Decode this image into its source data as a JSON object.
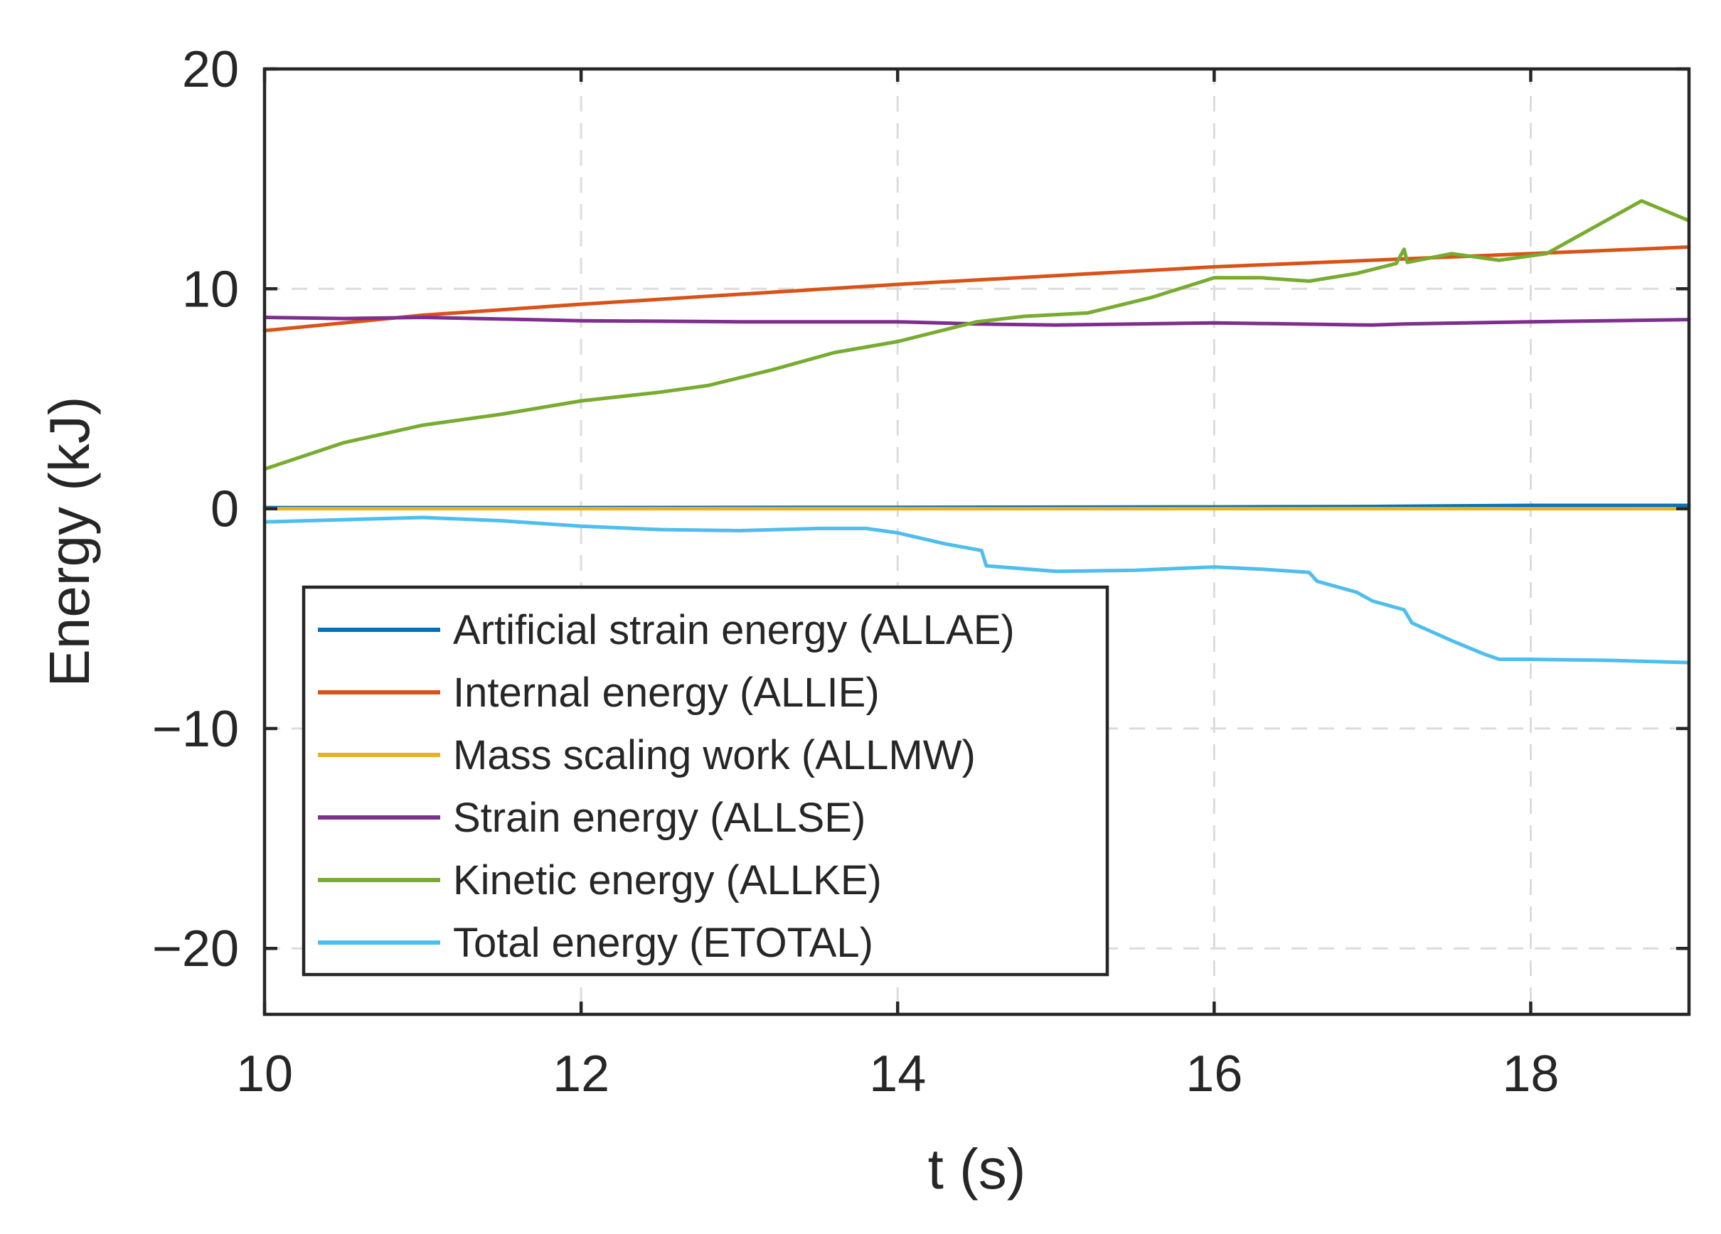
{
  "chart_data": {
    "type": "line",
    "title": "",
    "xlabel": "t (s)",
    "ylabel": "Energy (kJ)",
    "xlim": [
      10,
      19
    ],
    "ylim": [
      -23,
      20
    ],
    "xticks": [
      10,
      12,
      14,
      16,
      18
    ],
    "xtick_labels": [
      "10",
      "12",
      "14",
      "16",
      "18"
    ],
    "yticks": [
      20,
      10,
      0,
      -10,
      -20
    ],
    "ytick_labels": [
      "20",
      "10",
      "0",
      "−10",
      "−20"
    ],
    "grid": true,
    "legend_position": "lower-left",
    "series": [
      {
        "name": "Artificial strain energy (ALLAE)",
        "color": "#0072BD",
        "x": [
          10,
          12,
          14,
          16,
          17,
          18,
          19
        ],
        "y": [
          0.05,
          0.05,
          0.06,
          0.08,
          0.1,
          0.15,
          0.15
        ]
      },
      {
        "name": "Internal energy (ALLIE)",
        "color": "#D95319",
        "x": [
          10,
          11,
          12,
          13,
          14,
          15,
          16,
          17,
          18,
          19
        ],
        "y": [
          8.1,
          8.8,
          9.3,
          9.75,
          10.2,
          10.6,
          11.0,
          11.3,
          11.6,
          11.9
        ]
      },
      {
        "name": "Mass scaling work (ALLMW)",
        "color": "#EDB120",
        "x": [
          10,
          12,
          14,
          16,
          18,
          19
        ],
        "y": [
          0.0,
          0.0,
          0.0,
          0.0,
          0.0,
          0.0
        ]
      },
      {
        "name": "Strain energy (ALLSE)",
        "color": "#7E2F8E",
        "x": [
          10,
          10.5,
          11,
          12,
          13,
          14,
          14.5,
          15,
          16,
          17,
          17.2,
          18,
          19
        ],
        "y": [
          8.7,
          8.65,
          8.7,
          8.55,
          8.5,
          8.5,
          8.4,
          8.35,
          8.45,
          8.35,
          8.4,
          8.5,
          8.6
        ]
      },
      {
        "name": "Kinetic energy (ALLKE)",
        "color": "#77AC30",
        "x": [
          10,
          10.5,
          11,
          11.5,
          12,
          12.5,
          12.8,
          13.2,
          13.6,
          14,
          14.5,
          14.8,
          15.2,
          15.6,
          16,
          16.3,
          16.6,
          16.9,
          17.15,
          17.2,
          17.22,
          17.5,
          17.8,
          18.1,
          18.4,
          18.7,
          19
        ],
        "y": [
          1.8,
          3.0,
          3.8,
          4.3,
          4.9,
          5.3,
          5.6,
          6.3,
          7.1,
          7.6,
          8.5,
          8.75,
          8.9,
          9.6,
          10.5,
          10.5,
          10.35,
          10.7,
          11.15,
          11.8,
          11.2,
          11.6,
          11.3,
          11.6,
          12.8,
          14.0,
          13.1
        ]
      },
      {
        "name": "Total energy (ETOTAL)",
        "color": "#4DBEEE",
        "x": [
          10,
          10.5,
          11,
          11.5,
          12,
          12.5,
          13,
          13.5,
          13.8,
          14,
          14.3,
          14.53,
          14.56,
          15,
          15.5,
          16,
          16.3,
          16.6,
          16.65,
          16.9,
          17.0,
          17.2,
          17.25,
          17.5,
          17.7,
          17.8,
          18,
          18.5,
          19
        ],
        "y": [
          -0.6,
          -0.5,
          -0.4,
          -0.55,
          -0.8,
          -0.95,
          -1.0,
          -0.9,
          -0.9,
          -1.1,
          -1.6,
          -1.9,
          -2.6,
          -2.85,
          -2.8,
          -2.65,
          -2.75,
          -2.9,
          -3.3,
          -3.8,
          -4.2,
          -4.6,
          -5.2,
          -6.0,
          -6.6,
          -6.85,
          -6.85,
          -6.9,
          -7.0
        ]
      }
    ]
  }
}
